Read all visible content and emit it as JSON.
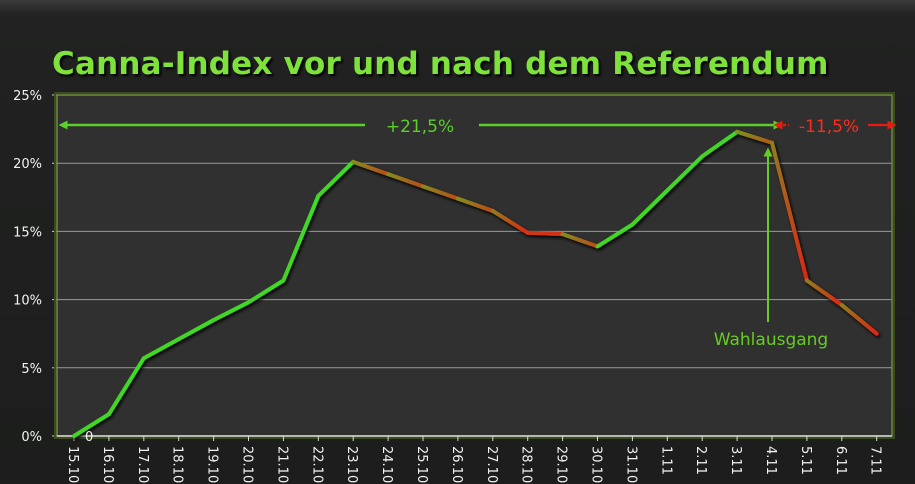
{
  "chart_data": {
    "type": "line",
    "title": "Canna-Index vor und nach dem Referendum",
    "xlabel": "",
    "ylabel": "",
    "ylim": [
      0,
      25
    ],
    "grid": true,
    "legend": "none",
    "categories": [
      "15.10",
      "16.10",
      "17.10",
      "18.10",
      "19.10",
      "20.10",
      "21.10",
      "22.10",
      "23.10",
      "24.10",
      "25.10",
      "26.10",
      "27.10",
      "28.10",
      "29.10",
      "30.10",
      "31.10",
      "1.11",
      "2.11",
      "3.11",
      "4.11",
      "5.11",
      "6.11",
      "7.11"
    ],
    "yticks": [
      "0%",
      "5%",
      "10%",
      "15%",
      "20%",
      "25%"
    ],
    "series": [
      {
        "values": [
          0,
          1.6,
          5.7,
          7.1,
          8.5,
          9.8,
          11.4,
          17.6,
          20.1,
          19.2,
          18.3,
          17.4,
          16.5,
          14.9,
          14.8,
          13.9,
          15.5,
          18.0,
          20.5,
          22.3,
          21.5,
          11.4,
          9.6,
          7.5
        ]
      }
    ],
    "start_value_label": "0",
    "annotations": {
      "gain_label": "+21,5%",
      "loss_label": "-11,5%",
      "event_label": "Wahlausgang"
    },
    "colors": {
      "title": "#7ee23a",
      "rising": "#3ddc28",
      "falling": "#e61b12",
      "gain_arrow": "#5ad12a",
      "loss_arrow": "#ff2b1a",
      "event": "#66cc22",
      "plot_border": "#6f8f3a",
      "grid": "#9a9a9a"
    }
  }
}
